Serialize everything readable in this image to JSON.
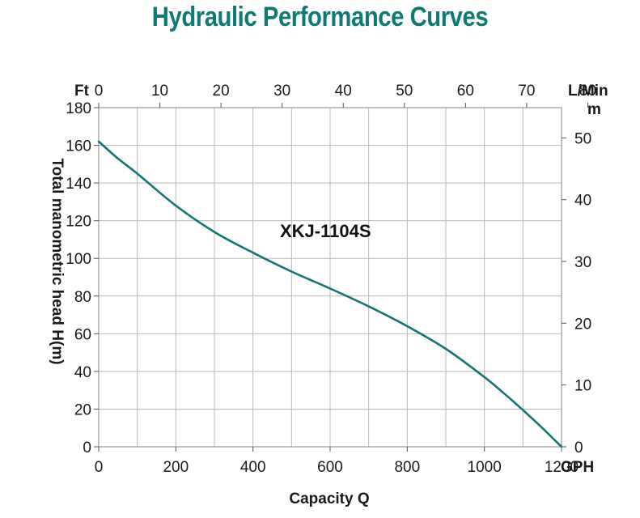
{
  "colors": {
    "accent": "#0f7a73",
    "curve": "#137672",
    "grid": "#b9b9b9",
    "text": "#1a1a1a"
  },
  "chart_data": {
    "type": "line",
    "title": "Hydraulic Performance Curves",
    "series_label": "XKJ-1104S",
    "xlabel": "Capacity Q",
    "ylabel": "Total manometric head H(m)",
    "x_unit_bottom": "GPH",
    "x_unit_top_1": "L/Min",
    "x_unit_top_2": "m",
    "y_unit_left": "Ft",
    "xlim": [
      0,
      1200
    ],
    "ylim_ft": [
      0,
      180
    ],
    "ylim_m": [
      0,
      54.9
    ],
    "x_ticks_bottom": [
      0,
      200,
      400,
      600,
      800,
      1000,
      1200
    ],
    "x_ticks_top_lmin": [
      0,
      10,
      20,
      30,
      40,
      50,
      60,
      70,
      80
    ],
    "y_ticks_left_ft": [
      0,
      20,
      40,
      60,
      80,
      100,
      120,
      140,
      160,
      180
    ],
    "y_ticks_right_m": [
      0,
      10,
      20,
      30,
      40,
      50
    ],
    "series": [
      {
        "name": "XKJ-1104S",
        "x_gph": [
          0,
          50,
          100,
          200,
          300,
          400,
          500,
          600,
          700,
          800,
          900,
          1000,
          1050,
          1100,
          1150,
          1200
        ],
        "y_ft": [
          162,
          153,
          145,
          128,
          114,
          103,
          93,
          84,
          74.5,
          64,
          52,
          37,
          28.5,
          19.5,
          10,
          0
        ]
      }
    ]
  }
}
